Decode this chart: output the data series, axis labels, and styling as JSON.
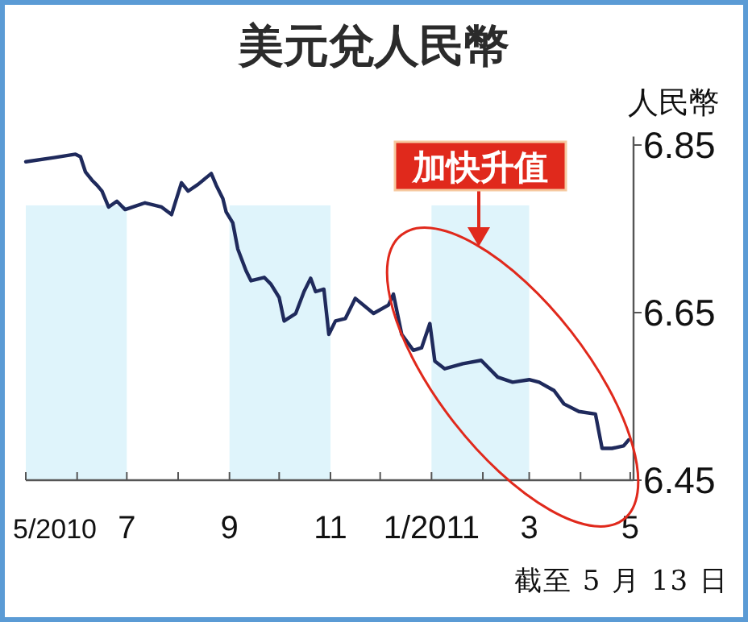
{
  "chart_data": {
    "type": "line",
    "title": "美元兌人民幣",
    "ylabel": "人民幣",
    "annotations": [
      "加快升值",
      "截至 5 月 13 日"
    ],
    "x": [
      "2010-05-01",
      "2010-05-18",
      "2010-05-31",
      "2010-06-03",
      "2010-06-06",
      "2010-06-10",
      "2010-06-13",
      "2010-06-16",
      "2010-06-20",
      "2010-06-25",
      "2010-06-30",
      "2010-07-12",
      "2010-07-22",
      "2010-07-28",
      "2010-08-03",
      "2010-08-07",
      "2010-08-13",
      "2010-08-21",
      "2010-08-24",
      "2010-08-28",
      "2010-08-30",
      "2010-09-03",
      "2010-09-06",
      "2010-09-11",
      "2010-09-14",
      "2010-09-22",
      "2010-09-26",
      "2010-10-01",
      "2010-10-04",
      "2010-10-11",
      "2010-10-16",
      "2010-10-20",
      "2010-10-23",
      "2010-10-28",
      "2010-10-31",
      "2010-11-04",
      "2010-11-10",
      "2010-11-16",
      "2010-11-27",
      "2010-12-06",
      "2010-12-09",
      "2010-12-14",
      "2010-12-21",
      "2010-12-26",
      "2010-12-31",
      "2011-01-03",
      "2011-01-09",
      "2011-01-20",
      "2011-01-31",
      "2011-02-10",
      "2011-02-19",
      "2011-03-01",
      "2011-03-07",
      "2011-03-16",
      "2011-03-22",
      "2011-03-31",
      "2011-04-10",
      "2011-04-14",
      "2011-04-20",
      "2011-04-27",
      "2011-04-30"
    ],
    "series": [
      {
        "color": "#1f2a5c",
        "values": [
          6.83,
          6.835,
          6.839,
          6.836,
          6.818,
          6.808,
          6.802,
          6.795,
          6.776,
          6.783,
          6.773,
          6.781,
          6.776,
          6.767,
          6.805,
          6.795,
          6.803,
          6.816,
          6.802,
          6.786,
          6.77,
          6.757,
          6.726,
          6.7,
          6.688,
          6.692,
          6.684,
          6.668,
          6.64,
          6.649,
          6.675,
          6.691,
          6.675,
          6.678,
          6.624,
          6.64,
          6.643,
          6.667,
          6.649,
          6.659,
          6.672,
          6.624,
          6.605,
          6.608,
          6.637,
          6.592,
          6.583,
          6.589,
          6.593,
          6.573,
          6.567,
          6.57,
          6.567,
          6.557,
          6.541,
          6.532,
          6.529,
          6.488,
          6.488,
          6.491,
          6.498
        ]
      }
    ],
    "xlim": [
      "2010-05-01",
      "2011-05-03"
    ],
    "xticks": [
      {
        "value": "2010-05-01",
        "label": "5/2010"
      },
      {
        "value": "2010-06-01",
        "label": null
      },
      {
        "value": "2010-07-01",
        "label": "7"
      },
      {
        "value": "2010-08-01",
        "label": null
      },
      {
        "value": "2010-09-01",
        "label": "9"
      },
      {
        "value": "2010-10-01",
        "label": null
      },
      {
        "value": "2010-11-01",
        "label": "11"
      },
      {
        "value": "2010-12-01",
        "label": null
      },
      {
        "value": "2011-01-01",
        "label": "1/2011"
      },
      {
        "value": "2011-02-01",
        "label": null
      },
      {
        "value": "2011-03-01",
        "label": "3"
      },
      {
        "value": "2011-04-01",
        "label": null
      },
      {
        "value": "2011-05-01",
        "label": "5"
      }
    ],
    "ylim": [
      6.45,
      6.86
    ],
    "yticks": [
      6.45,
      6.65,
      6.85
    ],
    "bands": [
      {
        "axis": "x",
        "from": "2010-05-01",
        "to": "2010-07-01",
        "color": "#dff4fb"
      },
      {
        "axis": "x",
        "from": "2010-09-01",
        "to": "2010-11-01",
        "color": "#dff4fb"
      },
      {
        "axis": "x",
        "from": "2011-01-01",
        "to": "2011-03-01",
        "color": "#dff4fb"
      }
    ],
    "grid": false,
    "marker": "none",
    "line_style": "solid"
  }
}
